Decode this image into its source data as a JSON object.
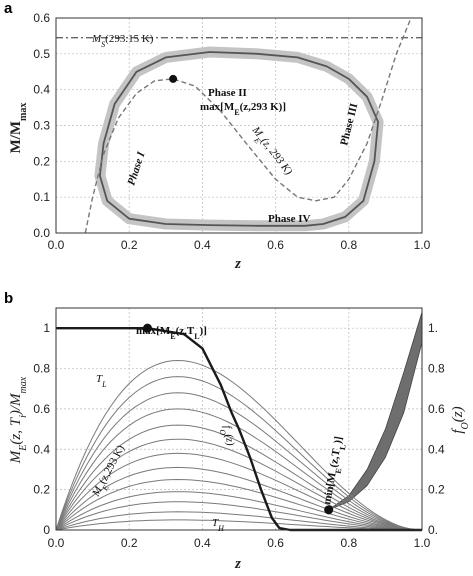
{
  "chart_data": [
    {
      "panel": "a",
      "type": "line",
      "xlabel": "z",
      "ylabel": "M/M",
      "ylabel_sub": "max",
      "xlim": [
        0.0,
        1.0
      ],
      "ylim": [
        0.0,
        0.6
      ],
      "xticks": [
        "0.0",
        "0.2",
        "0.4",
        "0.6",
        "0.8",
        "1.0"
      ],
      "yticks": [
        "0.0",
        "0.1",
        "0.2",
        "0.3",
        "0.4",
        "0.5",
        "0.6"
      ],
      "grid": true,
      "annotations": {
        "ms_label": "M",
        "ms_sub": "S",
        "ms_rest": "(293.15 K)",
        "max_label": "max[M",
        "max_sub": "E",
        "max_rest": "(z,293 K)]",
        "me_label": "M",
        "me_sub": "E",
        "me_rest": "(z, 293 K)",
        "phase1": "Phase I",
        "phase2": "Phase II",
        "phase3": "Phase III",
        "phase4": "Phase IV"
      },
      "series": [
        {
          "key": "ms",
          "style": "dash-dot",
          "y": 0.545
        },
        {
          "key": "me_curve",
          "style": "dashed",
          "x": [
            0.08,
            0.1,
            0.13,
            0.17,
            0.22,
            0.27,
            0.32,
            0.38,
            0.45,
            0.52,
            0.6,
            0.66,
            0.71,
            0.76,
            0.8,
            0.85,
            0.89,
            0.93,
            0.97
          ],
          "y": [
            0.0,
            0.1,
            0.22,
            0.32,
            0.39,
            0.425,
            0.43,
            0.41,
            0.34,
            0.25,
            0.15,
            0.1,
            0.09,
            0.1,
            0.15,
            0.25,
            0.37,
            0.5,
            0.62
          ]
        },
        {
          "key": "cycle",
          "style": "solid",
          "x": [
            0.12,
            0.13,
            0.16,
            0.22,
            0.3,
            0.42,
            0.55,
            0.66,
            0.74,
            0.8,
            0.85,
            0.88,
            0.87,
            0.84,
            0.79,
            0.73,
            0.68,
            0.55,
            0.42,
            0.3,
            0.2,
            0.14,
            0.12
          ],
          "y": [
            0.16,
            0.25,
            0.36,
            0.45,
            0.49,
            0.505,
            0.5,
            0.49,
            0.465,
            0.43,
            0.38,
            0.31,
            0.2,
            0.09,
            0.045,
            0.025,
            0.02,
            0.02,
            0.022,
            0.025,
            0.04,
            0.09,
            0.16
          ]
        }
      ],
      "max_point": {
        "x": 0.32,
        "y": 0.43
      }
    },
    {
      "panel": "b",
      "type": "line",
      "xlabel": "z",
      "ylabel": "M",
      "ylabel_sub": "E",
      "ylabel_rest": "(z, T",
      "ylabel_sub2": "i",
      "ylabel_rest2": ")/M",
      "ylabel_sub3": "max",
      "y2label": "f",
      "y2label_sub": "O",
      "y2label_rest": "(z)",
      "xlim": [
        0.0,
        1.0
      ],
      "ylim": [
        0.0,
        1.1
      ],
      "xticks": [
        "0.0",
        "0.2",
        "0.4",
        "0.6",
        "0.8",
        "1.0"
      ],
      "yticks_left": [
        "0",
        "0.2",
        "0.4",
        "0.6",
        "0.8",
        "1"
      ],
      "yticks_right": [
        "0.",
        "0.2",
        "0.4",
        "0.6",
        "0.8",
        "1."
      ],
      "grid": true,
      "annotations": {
        "max_label": "max[M",
        "max_sub": "E",
        "max_rest": "(z,T",
        "max_sub2": "L",
        "max_end": ")]",
        "min_label": "min[M",
        "min_sub": "E",
        "min_rest": "(z,T",
        "min_sub2": "L",
        "min_end": ")]",
        "tl_label": "T",
        "tl_sub": "L",
        "th_label": "T",
        "th_sub": "H",
        "me293_label": "M",
        "me293_sub": "E",
        "me293_rest": "(z,293 K)",
        "fo_label": "f",
        "fo_sub": "O",
        "fo_rest": "(z)"
      },
      "family_peaks": [
        0.84,
        0.76,
        0.68,
        0.6,
        0.52,
        0.45,
        0.38,
        0.31,
        0.25,
        0.19,
        0.14,
        0.09,
        0.05
      ],
      "fo_curve": {
        "x": [
          0.0,
          0.25,
          0.35,
          0.4,
          0.45,
          0.48,
          0.5,
          0.53,
          0.56,
          0.59,
          0.61,
          0.64,
          0.7,
          0.8,
          0.9,
          1.0
        ],
        "y": [
          1.0,
          1.0,
          0.97,
          0.9,
          0.72,
          0.58,
          0.5,
          0.36,
          0.2,
          0.06,
          0.01,
          0.0,
          0.0,
          0.0,
          0.0,
          0.0
        ]
      },
      "max_point": {
        "x": 0.25,
        "y": 1.0
      },
      "min_point": {
        "x": 0.745,
        "y": 0.1
      },
      "min_envelope": {
        "x": [
          0.745,
          0.8,
          0.85,
          0.9,
          0.95,
          1.0
        ],
        "y_lower": [
          0.1,
          0.14,
          0.22,
          0.36,
          0.58,
          0.93
        ],
        "y_upper": [
          0.1,
          0.17,
          0.3,
          0.5,
          0.78,
          1.08
        ]
      }
    }
  ]
}
